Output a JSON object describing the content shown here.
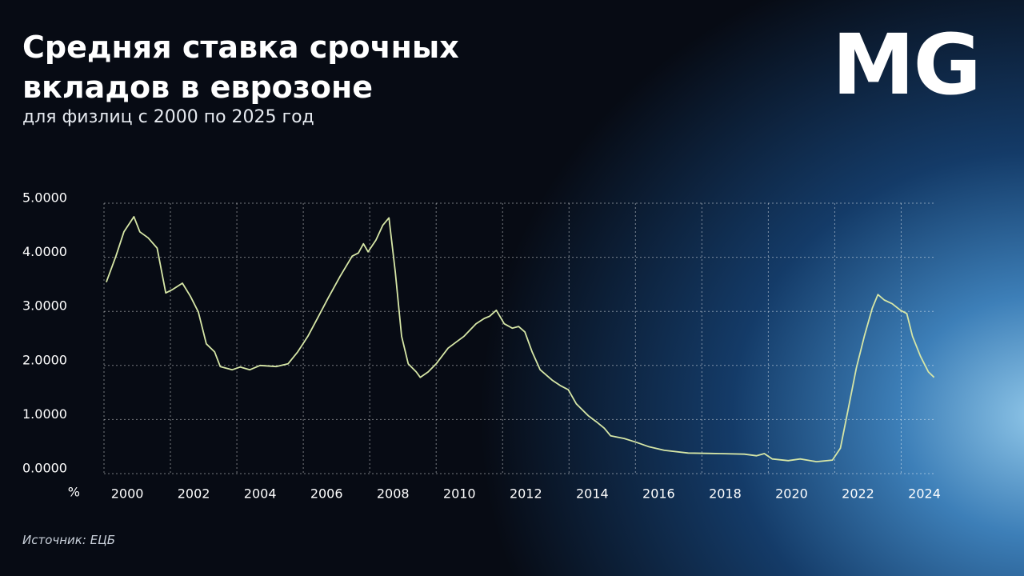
{
  "logo": "MG",
  "chart_data": {
    "type": "line",
    "title": "Средняя ставка срочных вкладов в еврозоне",
    "subtitle": "для физлиц с 2000 по 2025 год",
    "source": "Источник: ЕЦБ",
    "y_label": "%",
    "xlim": [
      2000,
      2025
    ],
    "xticks": [
      2000,
      2002,
      2004,
      2006,
      2008,
      2010,
      2012,
      2014,
      2016,
      2018,
      2020,
      2022,
      2024
    ],
    "ylim": [
      0,
      5
    ],
    "yticks": [
      {
        "value": 0,
        "label": "0.0000"
      },
      {
        "value": 1,
        "label": "1.0000"
      },
      {
        "value": 2,
        "label": "2.0000"
      },
      {
        "value": 3,
        "label": "3.0000"
      },
      {
        "value": 4,
        "label": "4.0000"
      },
      {
        "value": 5,
        "label": "5.0000"
      }
    ],
    "grid": true,
    "x": [
      2000.07,
      2000.36,
      2000.6,
      2000.9,
      2001.08,
      2001.33,
      2001.6,
      2001.86,
      2002.05,
      2002.36,
      2002.6,
      2002.84,
      2003.08,
      2003.33,
      2003.5,
      2003.86,
      2004.1,
      2004.39,
      2004.7,
      2005.18,
      2005.54,
      2005.83,
      2006.14,
      2006.46,
      2006.75,
      2007.11,
      2007.47,
      2007.66,
      2007.81,
      2007.95,
      2008.19,
      2008.39,
      2008.58,
      2008.77,
      2008.96,
      2009.16,
      2009.4,
      2009.52,
      2009.76,
      2010.0,
      2010.36,
      2010.6,
      2010.84,
      2011.2,
      2011.45,
      2011.61,
      2011.81,
      2012.05,
      2012.29,
      2012.48,
      2012.67,
      2012.89,
      2013.13,
      2013.49,
      2013.73,
      2013.98,
      2014.22,
      2014.58,
      2014.82,
      2015.06,
      2015.25,
      2015.66,
      2016.02,
      2016.39,
      2016.87,
      2017.59,
      2018.55,
      2019.28,
      2019.64,
      2019.88,
      2020.12,
      2020.6,
      2020.96,
      2021.45,
      2021.93,
      2022.17,
      2022.41,
      2022.65,
      2022.89,
      2023.13,
      2023.3,
      2023.49,
      2023.73,
      2023.98,
      2024.17,
      2024.34,
      2024.58,
      2024.82,
      2024.99
    ],
    "series": [
      {
        "color": "#d6e6a6",
        "values": [
          3.54,
          4.02,
          4.47,
          4.75,
          4.47,
          4.36,
          4.17,
          3.34,
          3.4,
          3.52,
          3.28,
          2.99,
          2.4,
          2.25,
          1.98,
          1.92,
          1.97,
          1.92,
          2.0,
          1.98,
          2.03,
          2.25,
          2.54,
          2.91,
          3.25,
          3.65,
          4.02,
          4.08,
          4.25,
          4.1,
          4.32,
          4.59,
          4.73,
          3.73,
          2.54,
          2.03,
          1.88,
          1.78,
          1.88,
          2.03,
          2.32,
          2.43,
          2.54,
          2.77,
          2.87,
          2.91,
          3.02,
          2.77,
          2.69,
          2.72,
          2.62,
          2.25,
          1.92,
          1.73,
          1.63,
          1.55,
          1.29,
          1.07,
          0.96,
          0.84,
          0.7,
          0.65,
          0.58,
          0.5,
          0.43,
          0.38,
          0.37,
          0.36,
          0.33,
          0.37,
          0.27,
          0.24,
          0.27,
          0.22,
          0.25,
          0.47,
          1.21,
          1.95,
          2.54,
          3.06,
          3.31,
          3.21,
          3.14,
          3.02,
          2.96,
          2.54,
          2.17,
          1.88,
          1.78
        ]
      }
    ]
  }
}
